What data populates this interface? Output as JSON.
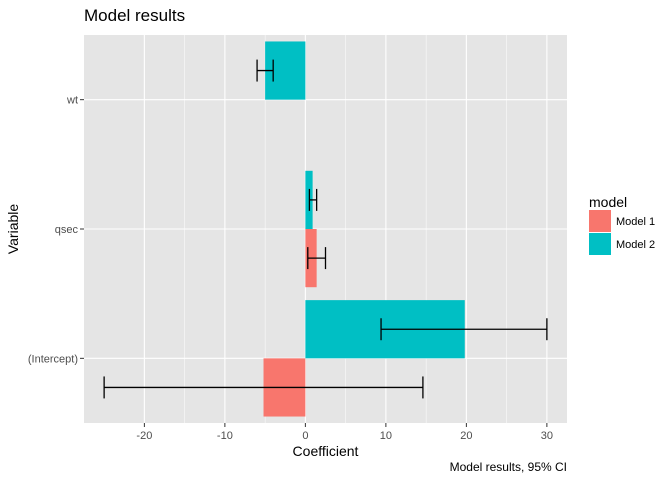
{
  "chart_data": {
    "type": "bar",
    "orientation": "horizontal",
    "title": "Model results",
    "xlabel": "Coefficient",
    "ylabel": "Variable",
    "caption": "Model results, 95% CI",
    "categories": [
      "(Intercept)",
      "qsec",
      "wt"
    ],
    "xlim": [
      -27.5,
      32.5
    ],
    "x_ticks": [
      -20,
      -10,
      0,
      10,
      20,
      30
    ],
    "x_tick_labels": [
      "-20",
      "-10",
      "0",
      "10",
      "20",
      "30"
    ],
    "grid": true,
    "legend": {
      "title": "model",
      "position": "right",
      "entries": [
        "Model 1",
        "Model 2"
      ]
    },
    "series": [
      {
        "name": "Model 1",
        "color": "#F8766D",
        "values": [
          -5.2,
          1.4,
          null
        ],
        "ci_low": [
          -25,
          0.3,
          null
        ],
        "ci_high": [
          14.6,
          2.5,
          null
        ]
      },
      {
        "name": "Model 2",
        "color": "#00BFC4",
        "values": [
          19.8,
          0.9,
          -5.0
        ],
        "ci_low": [
          9.4,
          0.5,
          -6.0
        ],
        "ci_high": [
          30.0,
          1.4,
          -4.0
        ]
      }
    ]
  },
  "colors": {
    "panel_background": "#E5E5E5",
    "grid_major": "#FFFFFF",
    "errorbar": "#000000"
  }
}
